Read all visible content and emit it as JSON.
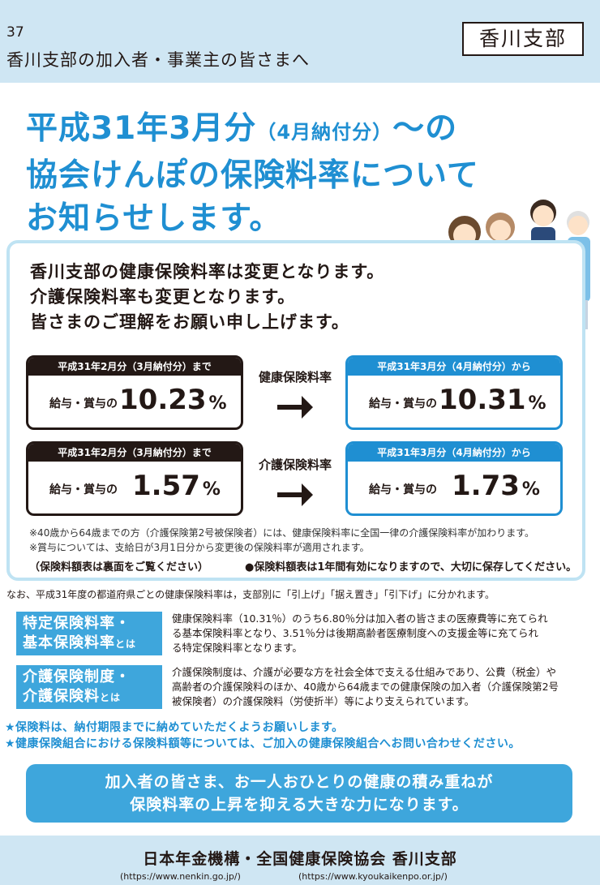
{
  "header": {
    "page_number": "37",
    "audience": "香川支部の加入者・事業主の皆さまへ",
    "branch": "香川支部"
  },
  "headline": {
    "line1_main": "平成31年3月分",
    "line1_small": "（4月納付分）",
    "line1_end": "～の",
    "line2": "協会けんぽの保険料率について",
    "line3": "お知らせします。"
  },
  "notice": {
    "intro_line1": "香川支部の健康保険料率は変更となります。",
    "intro_line2": "介護保険料率も変更となります。",
    "intro_line3": "皆さまのご理解をお願い申し上げます。",
    "health": {
      "label": "健康保険料率",
      "old_header": "平成31年2月分（3月納付分）まで",
      "old_basis": "給与・賞与の",
      "old_value": "10.23",
      "new_header": "平成31年3月分（4月納付分）から",
      "new_basis": "給与・賞与の",
      "new_value": "10.31",
      "unit": "%"
    },
    "care": {
      "label": "介護保険料率",
      "old_header": "平成31年2月分（3月納付分）まで",
      "old_basis": "給与・賞与の",
      "old_value": "1.57",
      "new_header": "平成31年3月分（4月納付分）から",
      "new_basis": "給与・賞与の",
      "new_value": "1.73",
      "unit": "%"
    },
    "note1": "※40歳から64歳までの方（介護保険第2号被保険者）には、健康保険料率に全国一律の介護保険料率が加わります。",
    "note2": "※賞与については、支給日が3月1日分から変更後の保険料率が適用されます。",
    "foot_left": "（保険料額表は裏面をご覧ください）",
    "foot_right": "●保険料額表は1年間有効になりますので、大切に保存してください。"
  },
  "distribution": "なお、平成31年度の都道府県ごとの健康保険料率は，支部別に「引上げ」「据え置き」「引下げ」に分かれます。",
  "definitions": [
    {
      "tag_line1": "特定保険料率・",
      "tag_line2": "基本保険料率",
      "tag_suffix": "とは",
      "text_line1": "健康保険料率（10.31％）のうち6.80％分は加入者の皆さまの医療費等に充てられ",
      "text_line2": "る基本保険料率となり、3.51％分は後期高齢者医療制度への支援金等に充てられ",
      "text_line3": "る特定保険料率となります。"
    },
    {
      "tag_line1": "介護保険制度・",
      "tag_line2": "介護保険料",
      "tag_suffix": "とは",
      "text_line1": "介護保険制度は、介護が必要な方を社会全体で支える仕組みであり、公費（税金）や",
      "text_line2": "高齢者の介護保険料のほか、40歳から64歳までの健康保険の加入者（介護保険第2号",
      "text_line3": "被保険者）の介護保険料（労使折半）等により支えられています。"
    }
  ],
  "stars": [
    "★保険料は、納付期限までに納めていただくようお願いします。",
    "★健康保険組合における保険料額等については、ご加入の健康保険組合へお問い合わせください。"
  ],
  "banner": {
    "line1": "加入者の皆さま、お一人おひとりの健康の積み重ねが",
    "line2": "保険料率の上昇を抑える大きな力になります。"
  },
  "footer": {
    "org": "日本年金機構・全国健康保険協会 香川支部",
    "url1": "(https://www.nenkin.go.jp/)",
    "url2": "(https://www.kyoukaikenpo.or.jp/)"
  },
  "colors": {
    "accent": "#1f8fd2",
    "banner": "#3ea6dc",
    "background": "#cfe6f3"
  }
}
